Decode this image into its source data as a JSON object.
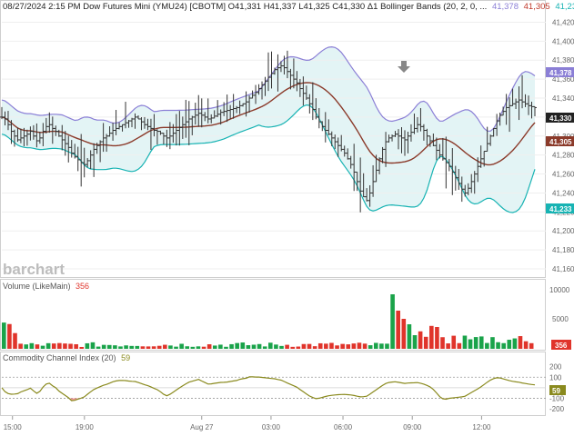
{
  "header": {
    "title": "08/27/2024 2:15 PM Dow Futures Mini (YMU24) [CBOTM] O41,331 H41,337 L41,325 C41,330 Δ1 Bollinger Bands  (20, 2, 0, ...",
    "bb_upper": "41,378",
    "bb_mid": "41,305",
    "bb_lower": "41,233"
  },
  "logo": "barchart",
  "colors": {
    "bb_upper": "#8b7fd6",
    "bb_mid": "#8b3a2a",
    "bb_lower": "#17b3b3",
    "bb_fill": "#e3f4f5",
    "volume_up": "#1aa34a",
    "volume_down": "#e0342b",
    "cci_line": "#8a8a1e",
    "cci_pos_fill": "#7f95e8",
    "cci_neg_fill": "#f08080",
    "price_badge": "#222222"
  },
  "price_axis": [
    "41,420",
    "41,400",
    "41,380",
    "41,360",
    "41,340",
    "41,320",
    "41,300",
    "41,280",
    "41,260",
    "41,240",
    "41,220",
    "41,200",
    "41,180",
    "41,160"
  ],
  "badges": {
    "upper": "41,378",
    "last": "41,330",
    "mid": "41,305",
    "lower": "41,233",
    "volume": "356",
    "cci": "59"
  },
  "volume_panel": {
    "label": "Volume  (LikeMain)",
    "value": "356",
    "axis": [
      "10000",
      "5000"
    ]
  },
  "cci_panel": {
    "label": "Commodity Channel Index  (20)",
    "value": "59",
    "axis": [
      "200",
      "100",
      "0",
      "-100",
      "-200"
    ]
  },
  "time_axis": [
    "15:00",
    "19:00",
    "Aug 27",
    "03:00",
    "06:00",
    "09:00",
    "12:00"
  ],
  "chart_data": {
    "type": "ohlc",
    "symbol": "YMU24",
    "last": {
      "open": 41331,
      "high": 41337,
      "low": 41325,
      "close": 41330
    },
    "price_ylim": [
      41160,
      41430
    ],
    "closes": [
      41320,
      41318,
      41312,
      41305,
      41300,
      41296,
      41298,
      41300,
      41302,
      41305,
      41300,
      41295,
      41298,
      41305,
      41310,
      41312,
      41308,
      41305,
      41300,
      41296,
      41292,
      41288,
      41282,
      41278,
      41275,
      41272,
      41270,
      41274,
      41280,
      41286,
      41290,
      41294,
      41298,
      41300,
      41303,
      41306,
      41308,
      41310,
      41312,
      41314,
      41316,
      41318,
      41320,
      41318,
      41315,
      41312,
      41310,
      41308,
      41306,
      41305,
      41303,
      41300,
      41298,
      41300,
      41303,
      41306,
      41309,
      41312,
      41315,
      41318,
      41320,
      41322,
      41324,
      41322,
      41320,
      41318,
      41319,
      41321,
      41323,
      41325,
      41326,
      41327,
      41328,
      41329,
      41330,
      41332,
      41334,
      41336,
      41340,
      41343,
      41346,
      41350,
      41354,
      41358,
      41362,
      41366,
      41370,
      41372,
      41374,
      41372,
      41368,
      41364,
      41360,
      41356,
      41350,
      41345,
      41340,
      41334,
      41328,
      41320,
      41315,
      41310,
      41306,
      41302,
      41298,
      41294,
      41290,
      41286,
      41282,
      41276,
      41270,
      41262,
      41252,
      41242,
      41236,
      41232,
      41240,
      41252,
      41264,
      41276,
      41286,
      41294,
      41298,
      41300,
      41302,
      41300,
      41298,
      41296,
      41300,
      41304,
      41308,
      41312,
      41310,
      41306,
      41300,
      41295,
      41290,
      41285,
      41280,
      41276,
      41272,
      41268,
      41262,
      41256,
      41250,
      41244,
      41240,
      41245,
      41252,
      41260,
      41268,
      41276,
      41284,
      41292,
      41300,
      41308,
      41316,
      41322,
      41326,
      41330,
      41332,
      41334,
      41336,
      41338,
      41336,
      41334,
      41332,
      41331,
      41330
    ],
    "bollinger": {
      "period": 20,
      "stddev": 2,
      "upper_last": 41378,
      "middle_last": 41305,
      "lower_last": 41233
    },
    "volume_ylim": [
      0,
      11000
    ],
    "cci_ylim": [
      -250,
      300
    ]
  }
}
